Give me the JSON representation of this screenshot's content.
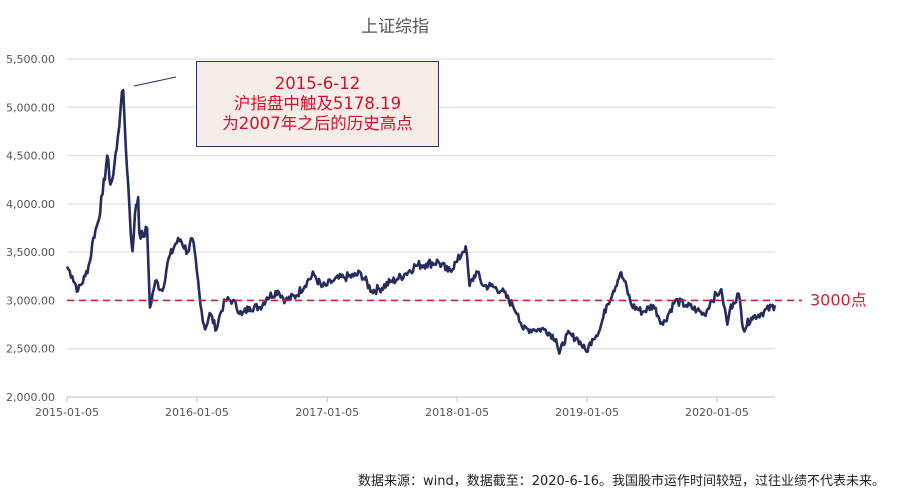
{
  "chart_data": {
    "type": "line",
    "title": "上证综指",
    "xlabel": "",
    "ylabel": "",
    "x_ticks": [
      "2015-01-05",
      "2016-01-05",
      "2017-01-05",
      "2018-01-05",
      "2019-01-05",
      "2020-01-05"
    ],
    "y_ticks": [
      "2,000.00",
      "2,500.00",
      "3,000.00",
      "3,500.00",
      "4,000.00",
      "4,500.00",
      "5,000.00",
      "5,500.00"
    ],
    "xlim": [
      "2015-01-05",
      "2020-06-16"
    ],
    "ylim": [
      2000,
      5500
    ],
    "grid": "horizontal",
    "series": [
      {
        "color": "#262c5c",
        "x": [
          "2015-01-05",
          "2015-01-20",
          "2015-02-05",
          "2015-02-25",
          "2015-03-10",
          "2015-03-20",
          "2015-04-01",
          "2015-04-15",
          "2015-04-28",
          "2015-05-07",
          "2015-05-15",
          "2015-05-28",
          "2015-06-05",
          "2015-06-12",
          "2015-06-19",
          "2015-06-26",
          "2015-07-03",
          "2015-07-08",
          "2015-07-15",
          "2015-07-24",
          "2015-07-27",
          "2015-08-07",
          "2015-08-18",
          "2015-08-26",
          "2015-09-10",
          "2015-09-30",
          "2015-10-15",
          "2015-11-06",
          "2015-11-20",
          "2015-12-10",
          "2015-12-23",
          "2016-01-05",
          "2016-01-15",
          "2016-01-28",
          "2016-02-10",
          "2016-02-29",
          "2016-03-10",
          "2016-03-25",
          "2016-04-15",
          "2016-05-10",
          "2016-06-01",
          "2016-06-30",
          "2016-07-20",
          "2016-08-20",
          "2016-09-10",
          "2016-10-10",
          "2016-11-10",
          "2016-11-29",
          "2016-12-20",
          "2017-01-05",
          "2017-01-20",
          "2017-02-20",
          "2017-03-20",
          "2017-04-10",
          "2017-05-10",
          "2017-06-01",
          "2017-07-01",
          "2017-07-20",
          "2017-08-10",
          "2017-09-10",
          "2017-10-10",
          "2017-11-13",
          "2017-12-10",
          "2018-01-05",
          "2018-01-20",
          "2018-01-29",
          "2018-02-09",
          "2018-02-28",
          "2018-03-20",
          "2018-04-10",
          "2018-05-10",
          "2018-06-10",
          "2018-06-25",
          "2018-07-10",
          "2018-08-06",
          "2018-09-10",
          "2018-10-10",
          "2018-10-19",
          "2018-11-10",
          "2018-12-10",
          "2019-01-03",
          "2019-01-20",
          "2019-02-10",
          "2019-03-01",
          "2019-03-20",
          "2019-04-08",
          "2019-04-20",
          "2019-05-10",
          "2019-06-10",
          "2019-07-10",
          "2019-08-06",
          "2019-09-10",
          "2019-10-10",
          "2019-11-10",
          "2019-12-01",
          "2019-12-20",
          "2020-01-14",
          "2020-01-20",
          "2020-02-03",
          "2020-02-10",
          "2020-02-20",
          "2020-03-06",
          "2020-03-19",
          "2020-04-10",
          "2020-05-10",
          "2020-06-16"
        ],
        "y": [
          3350,
          3250,
          3100,
          3250,
          3400,
          3650,
          3800,
          4100,
          4500,
          4200,
          4300,
          4700,
          5000,
          5178.19,
          4600,
          4200,
          3700,
          3510,
          3900,
          4070,
          3700,
          3660,
          3750,
          2927,
          3200,
          3100,
          3400,
          3590,
          3630,
          3500,
          3640,
          3300,
          2950,
          2700,
          2870,
          2700,
          2860,
          3000,
          3000,
          2850,
          2930,
          2930,
          3030,
          3100,
          3000,
          3050,
          3200,
          3270,
          3140,
          3160,
          3200,
          3240,
          3250,
          3280,
          3100,
          3120,
          3190,
          3220,
          3270,
          3360,
          3380,
          3400,
          3300,
          3400,
          3500,
          3560,
          3150,
          3300,
          3150,
          3150,
          3100,
          2950,
          2860,
          2700,
          2700,
          2700,
          2600,
          2450,
          2650,
          2600,
          2470,
          2600,
          2700,
          2950,
          3100,
          3280,
          3200,
          2950,
          2880,
          2950,
          2750,
          3000,
          2950,
          2900,
          2850,
          3000,
          3100,
          3050,
          2750,
          2900,
          2980,
          3070,
          2700,
          2820,
          2870,
          2950
        ]
      }
    ],
    "reference_line": {
      "value": 3000,
      "label": "3000点",
      "color": "#cc1f3a"
    },
    "annotation": {
      "lines": [
        "2015-6-12",
        "沪指盘中触及5178.19",
        "为2007年之后的历史高点"
      ],
      "text_color": "#d0112b",
      "background": "#f6ede8",
      "border_color": "#2a3060"
    },
    "source_note": "数据来源：wind，数据截至：2020-6-16。我国股市运作时间较短，过往业绩不代表未来。"
  }
}
